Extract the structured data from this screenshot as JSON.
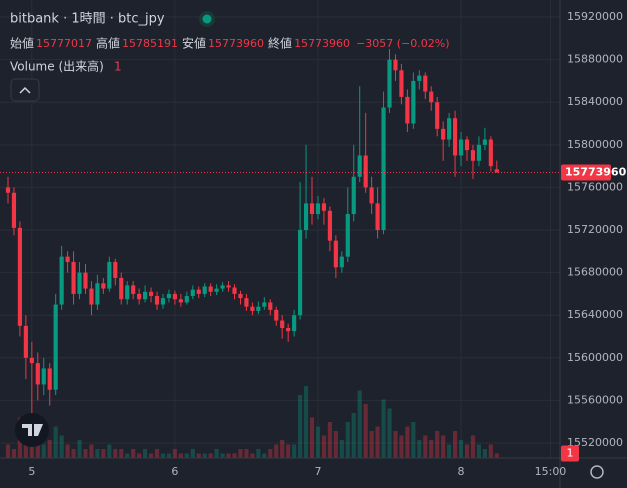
{
  "chart_data": {
    "type": "candlestick",
    "title": "bitbank · 1時間 · btc_jpy",
    "labels": {
      "open": "始値",
      "high": "高値",
      "low": "安値",
      "close": "終値"
    },
    "change": "−3057 (−0.02%)",
    "volume_title": "Volume (出来高)",
    "up_color": "#089981",
    "down_color": "#f23645",
    "open": [
      15760000,
      15755000,
      15722000,
      15630000,
      15600000,
      15595000,
      15575000,
      15590000,
      15570000,
      15650000,
      15695000,
      15690000,
      15660000,
      15680000,
      15665000,
      15650000,
      15670000,
      15665000,
      15690000,
      15675000,
      15655000,
      15668000,
      15660000,
      15655000,
      15662000,
      15658000,
      15650000,
      15656000,
      15660000,
      15655000,
      15652000,
      15658000,
      15664000,
      15660000,
      15667000,
      15662000,
      15665000,
      15668000,
      15666000,
      15660000,
      15656000,
      15648000,
      15644000,
      15648000,
      15652000,
      15645000,
      15635000,
      15628000,
      15625000,
      15640000,
      15720000,
      15745000,
      15735000,
      15745000,
      15738000,
      15710000,
      15685000,
      15695000,
      15735000,
      15770000,
      15790000,
      15760000,
      15745000,
      15720000,
      15835000,
      15880000,
      15870000,
      15845000,
      15820000,
      15860000,
      15865000,
      15850000,
      15840000,
      15815000,
      15805000,
      15825000,
      15790000,
      15805000,
      15795000,
      15785000,
      15800000,
      15805000,
      15777017
    ],
    "high": [
      15770000,
      15760000,
      15728000,
      15640000,
      15615000,
      15605000,
      15600000,
      15595000,
      15660000,
      15705000,
      15700000,
      15700000,
      15690000,
      15688000,
      15672000,
      15678000,
      15675000,
      15695000,
      15693000,
      15680000,
      15672000,
      15672000,
      15665000,
      15668000,
      15666000,
      15662000,
      15660000,
      15664000,
      15663000,
      15660000,
      15662000,
      15668000,
      15667000,
      15670000,
      15670000,
      15669000,
      15671000,
      15672000,
      15669000,
      15663000,
      15660000,
      15652000,
      15653000,
      15657000,
      15655000,
      15648000,
      15640000,
      15632000,
      15645000,
      15765000,
      15800000,
      15770000,
      15752000,
      15750000,
      15742000,
      15715000,
      15700000,
      15760000,
      15800000,
      15855000,
      15830000,
      15770000,
      15760000,
      15850000,
      15890000,
      15885000,
      15876000,
      15852000,
      15868000,
      15870000,
      15868000,
      15855000,
      15845000,
      15822000,
      15830000,
      15832000,
      15812000,
      15808000,
      15800000,
      15808000,
      15816000,
      15808000,
      15785191
    ],
    "low": [
      15745000,
      15715000,
      15620000,
      15580000,
      15545000,
      15560000,
      15565000,
      15555000,
      15565000,
      15645000,
      15680000,
      15650000,
      15655000,
      15660000,
      15640000,
      15645000,
      15660000,
      15662000,
      15668000,
      15650000,
      15650000,
      15655000,
      15650000,
      15652000,
      15652000,
      15645000,
      15646000,
      15652000,
      15650000,
      15648000,
      15650000,
      15655000,
      15656000,
      15657000,
      15658000,
      15659000,
      15662000,
      15662000,
      15655000,
      15650000,
      15644000,
      15640000,
      15641000,
      15645000,
      15640000,
      15630000,
      15618000,
      15615000,
      15620000,
      15636000,
      15712000,
      15725000,
      15730000,
      15725000,
      15700000,
      15675000,
      15680000,
      15690000,
      15728000,
      15765000,
      15755000,
      15735000,
      15712000,
      15716000,
      15830000,
      15860000,
      15838000,
      15812000,
      15815000,
      15852000,
      15843000,
      15832000,
      15808000,
      15785000,
      15798000,
      15770000,
      15780000,
      15785000,
      15768000,
      15780000,
      15795000,
      15775000,
      15773960
    ],
    "close": [
      15755000,
      15722000,
      15630000,
      15600000,
      15595000,
      15575000,
      15590000,
      15570000,
      15650000,
      15695000,
      15690000,
      15660000,
      15680000,
      15665000,
      15650000,
      15670000,
      15665000,
      15690000,
      15675000,
      15655000,
      15668000,
      15660000,
      15655000,
      15662000,
      15658000,
      15650000,
      15656000,
      15660000,
      15655000,
      15652000,
      15658000,
      15664000,
      15660000,
      15667000,
      15662000,
      15665000,
      15668000,
      15666000,
      15660000,
      15656000,
      15648000,
      15644000,
      15648000,
      15652000,
      15645000,
      15635000,
      15628000,
      15625000,
      15640000,
      15720000,
      15745000,
      15735000,
      15745000,
      15738000,
      15710000,
      15685000,
      15695000,
      15735000,
      15770000,
      15790000,
      15760000,
      15745000,
      15720000,
      15835000,
      15880000,
      15870000,
      15845000,
      15820000,
      15860000,
      15865000,
      15850000,
      15840000,
      15815000,
      15805000,
      15825000,
      15790000,
      15805000,
      15795000,
      15785000,
      15800000,
      15805000,
      15780000,
      15773960
    ],
    "volume": [
      3,
      2,
      9,
      6,
      8,
      5,
      3,
      4,
      7,
      5,
      3,
      2,
      4,
      2,
      3,
      2,
      2,
      3,
      2,
      2,
      1,
      2,
      1,
      2,
      1,
      2,
      1,
      1,
      2,
      1,
      1,
      2,
      1,
      1,
      1,
      2,
      1,
      1,
      1,
      2,
      2,
      1,
      2,
      1,
      2,
      3,
      4,
      3,
      3,
      14,
      16,
      9,
      7,
      5,
      8,
      6,
      4,
      8,
      10,
      15,
      12,
      6,
      7,
      13,
      11,
      6,
      5,
      7,
      8,
      4,
      5,
      4,
      6,
      5,
      3,
      6,
      4,
      3,
      5,
      3,
      2,
      3,
      1
    ],
    "xlim": [
      -1.34,
      92.6
    ],
    "xticks": [
      {
        "value": 4,
        "label": "5"
      },
      {
        "value": 28,
        "label": "6"
      },
      {
        "value": 52,
        "label": "7"
      },
      {
        "value": 76,
        "label": "8"
      },
      {
        "value": 91,
        "label": "15:00"
      }
    ],
    "ylim": [
      15505900,
      15936000
    ],
    "yticks": [
      15520000,
      15560000,
      15600000,
      15640000,
      15680000,
      15720000,
      15760000,
      15800000,
      15840000,
      15880000,
      15920000
    ],
    "vlim": [
      0,
      20
    ]
  }
}
